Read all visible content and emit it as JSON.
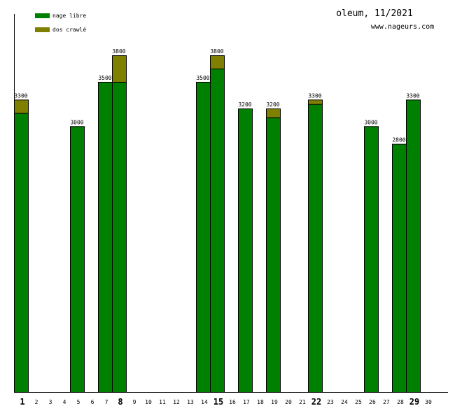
{
  "title": "oleum, 11/2021",
  "site": "www.nageurs.com",
  "colors": {
    "nage_libre": "#008000",
    "dos_crawle": "#808000"
  },
  "chart_data": {
    "type": "bar",
    "stacked": true,
    "title": "oleum, 11/2021",
    "xlabel": "",
    "ylabel": "",
    "ylim": [
      0,
      3800
    ],
    "legend_placement": "top-left",
    "categories": [
      "1",
      "2",
      "3",
      "4",
      "5",
      "6",
      "7",
      "8",
      "9",
      "10",
      "11",
      "12",
      "13",
      "14",
      "15",
      "16",
      "17",
      "18",
      "19",
      "20",
      "21",
      "22",
      "23",
      "24",
      "25",
      "26",
      "27",
      "28",
      "29",
      "30"
    ],
    "bold_categories": [
      "1",
      "8",
      "15",
      "22",
      "29"
    ],
    "series": [
      {
        "name": "nage libre",
        "values": [
          3150,
          0,
          0,
          0,
          3000,
          0,
          3500,
          3500,
          0,
          0,
          0,
          0,
          0,
          3500,
          3650,
          0,
          3200,
          0,
          3100,
          0,
          0,
          3250,
          0,
          0,
          0,
          3000,
          0,
          2800,
          3300,
          0
        ]
      },
      {
        "name": "dos crawlé",
        "values": [
          150,
          0,
          0,
          0,
          0,
          0,
          0,
          300,
          0,
          0,
          0,
          0,
          0,
          0,
          150,
          0,
          0,
          0,
          100,
          0,
          0,
          50,
          0,
          0,
          0,
          0,
          0,
          0,
          0,
          0
        ]
      }
    ],
    "totals": [
      3300,
      0,
      0,
      0,
      3000,
      0,
      3500,
      3800,
      0,
      0,
      0,
      0,
      0,
      3500,
      3800,
      0,
      3200,
      0,
      3200,
      0,
      0,
      3300,
      0,
      0,
      0,
      3000,
      0,
      2800,
      3300,
      0
    ]
  }
}
